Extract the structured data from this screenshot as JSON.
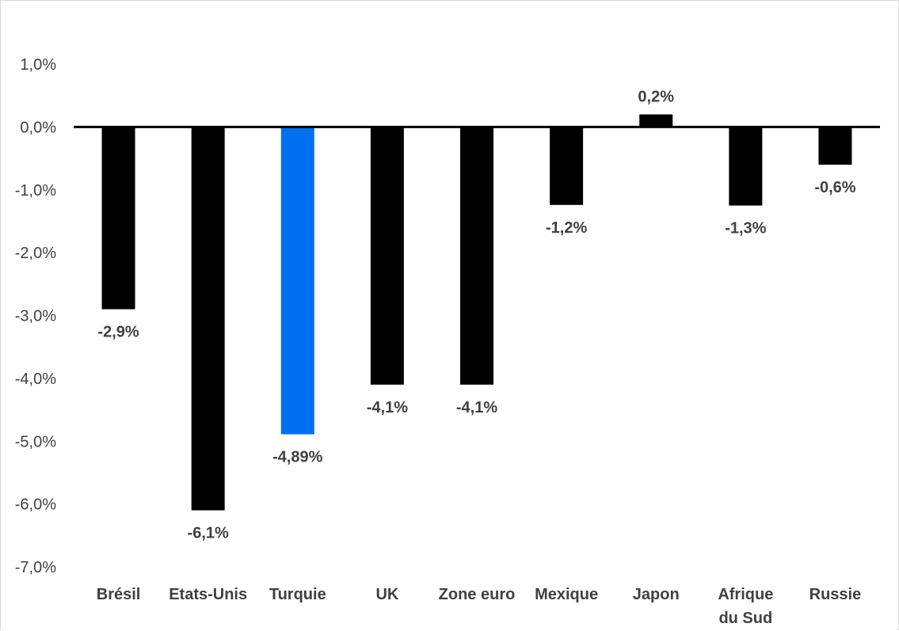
{
  "chart_data": {
    "type": "bar",
    "categories": [
      [
        "Brésil"
      ],
      [
        "Etats-Unis"
      ],
      [
        "Turquie"
      ],
      [
        "UK"
      ],
      [
        "Zone euro"
      ],
      [
        "Mexique"
      ],
      [
        "Japon"
      ],
      [
        "Afrique",
        "du Sud"
      ],
      [
        "Russie"
      ]
    ],
    "values": [
      -2.9,
      -6.1,
      -4.89,
      -4.1,
      -4.1,
      -1.24,
      0.2,
      -1.25,
      -0.6
    ],
    "data_labels": [
      "-2,9%",
      "-6,1%",
      "-4,89%",
      "-4,1%",
      "-4,1%",
      "-1,2%",
      "0,2%",
      "-1,3%",
      "-0,6%"
    ],
    "y_ticks": [
      {
        "value": 1.0,
        "label": "1,0%"
      },
      {
        "value": 0.0,
        "label": "0,0%"
      },
      {
        "value": -1.0,
        "label": "-1,0%"
      },
      {
        "value": -2.0,
        "label": "-2,0%"
      },
      {
        "value": -3.0,
        "label": "-3,0%"
      },
      {
        "value": -4.0,
        "label": "-4,0%"
      },
      {
        "value": -5.0,
        "label": "-5,0%"
      },
      {
        "value": -6.0,
        "label": "-6,0%"
      },
      {
        "value": -7.0,
        "label": "-7,0%"
      }
    ],
    "ylim": [
      -7.0,
      1.0
    ],
    "colors": {
      "default": "#000000",
      "highlight": "#0070F0",
      "axis": "#000000",
      "text": "#404040"
    },
    "highlight_index": 2,
    "grid": false,
    "legend": "none",
    "title": "",
    "xlabel": "",
    "ylabel": ""
  }
}
